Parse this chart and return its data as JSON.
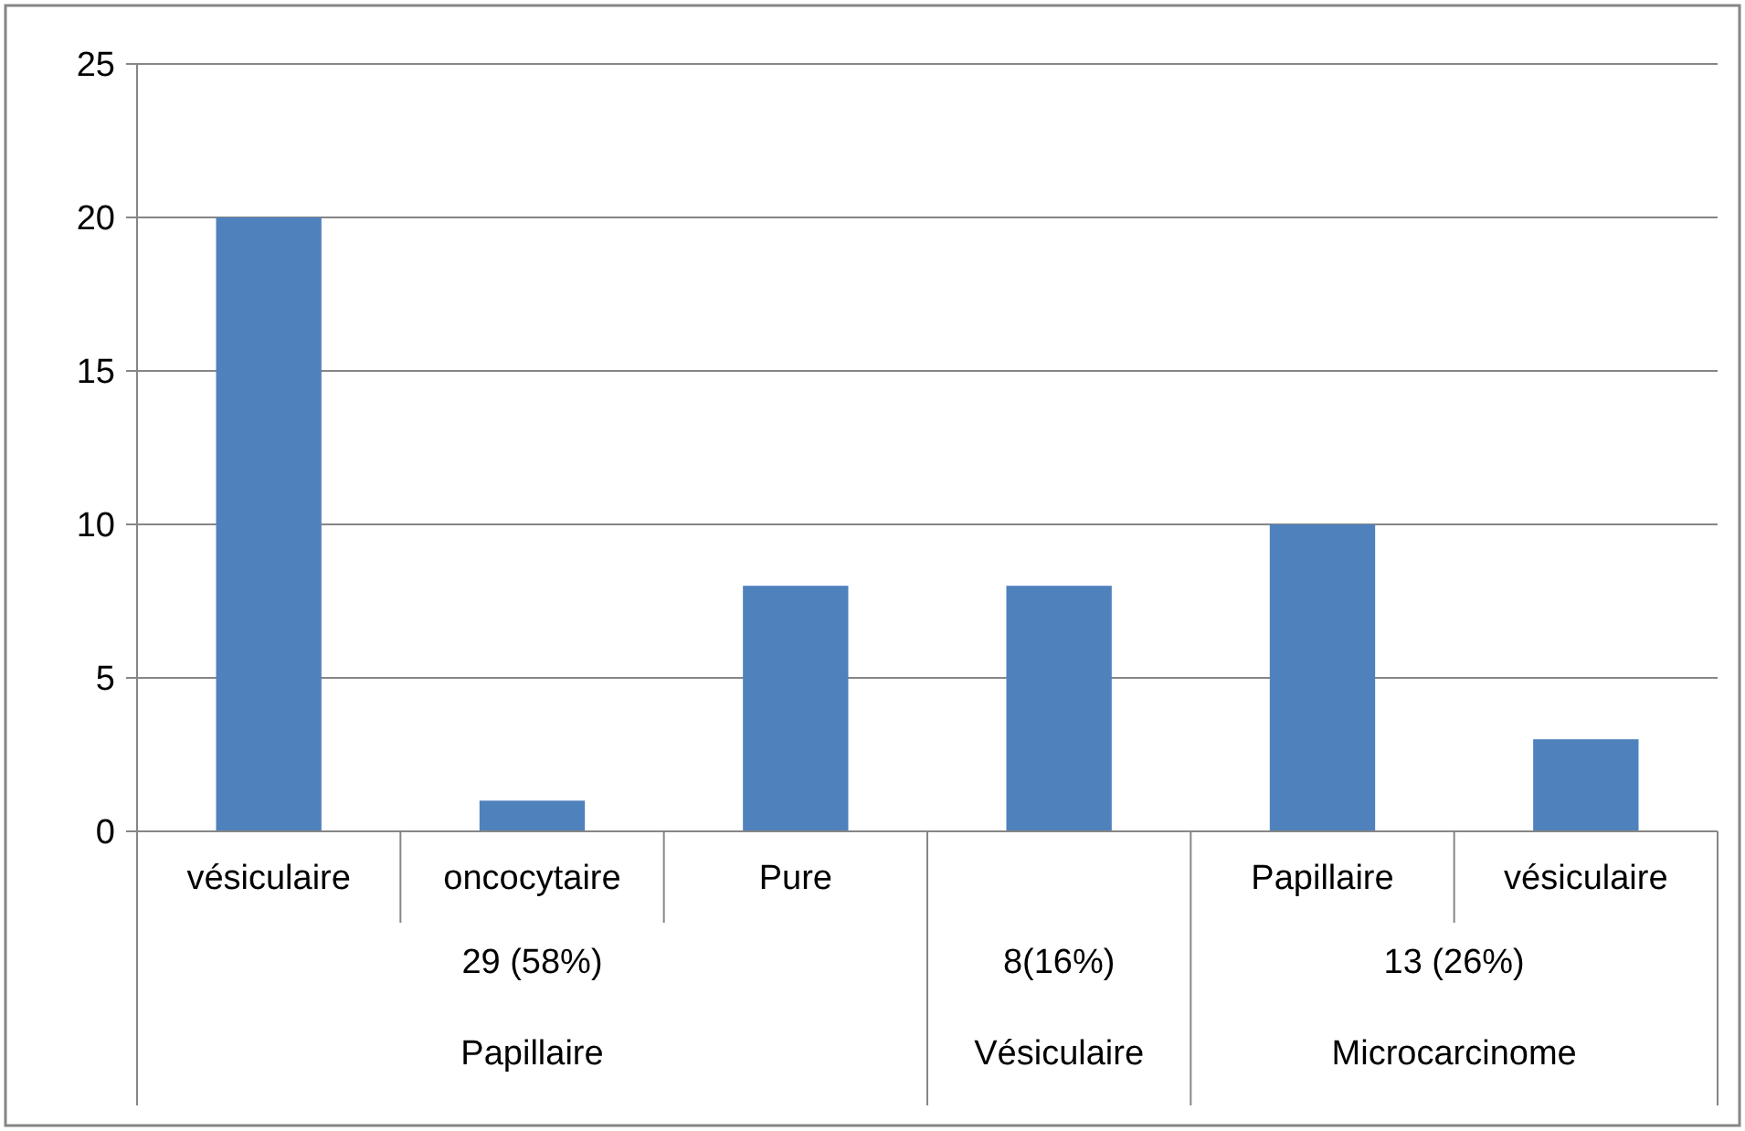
{
  "chart_data": {
    "type": "bar",
    "categories": [
      "vésiculaire",
      "oncocytaire",
      "Pure",
      null,
      "Papillaire",
      "vésiculaire"
    ],
    "values": [
      20,
      1,
      8,
      8,
      10,
      3
    ],
    "color": "#4f81bd",
    "ylim": [
      0,
      25
    ],
    "yticks": [
      0,
      5,
      10,
      15,
      20,
      25
    ],
    "grid": "y",
    "annotations": [
      "29 (58%)",
      "8(16%)",
      "13 (26%)",
      "Papillaire",
      "Vésiculaire",
      "Microcarcinome"
    ]
  }
}
